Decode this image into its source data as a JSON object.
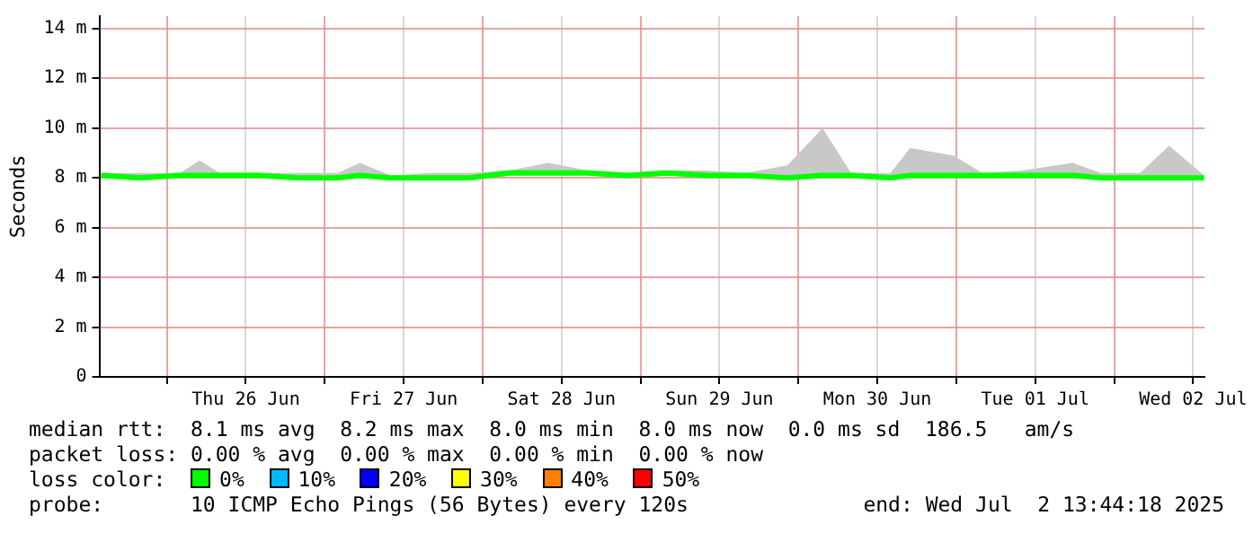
{
  "chart_data": {
    "type": "line",
    "ylabel": "Seconds",
    "xlim": [
      "2025-06-25T13:44:18",
      "2025-07-02T13:44:18"
    ],
    "xticks": [
      {
        "value": "2025-06-26T00:00",
        "label": null
      },
      {
        "value": "2025-06-26T12:00",
        "label": "Thu 26 Jun"
      },
      {
        "value": "2025-06-27T00:00",
        "label": null
      },
      {
        "value": "2025-06-27T12:00",
        "label": "Fri 27 Jun"
      },
      {
        "value": "2025-06-28T00:00",
        "label": null
      },
      {
        "value": "2025-06-28T12:00",
        "label": "Sat 28 Jun"
      },
      {
        "value": "2025-06-29T00:00",
        "label": null
      },
      {
        "value": "2025-06-29T12:00",
        "label": "Sun 29 Jun"
      },
      {
        "value": "2025-06-30T00:00",
        "label": null
      },
      {
        "value": "2025-06-30T12:00",
        "label": "Mon 30 Jun"
      },
      {
        "value": "2025-07-01T00:00",
        "label": null
      },
      {
        "value": "2025-07-01T12:00",
        "label": "Tue 01 Jul"
      },
      {
        "value": "2025-07-02T00:00",
        "label": null
      },
      {
        "value": "2025-07-02T12:00",
        "label": "Wed 02 Jul"
      }
    ],
    "ylim": [
      0,
      14.5
    ],
    "yticks": [
      0,
      {
        "value": 2,
        "label": "2 m"
      },
      {
        "value": 4,
        "label": "4 m"
      },
      {
        "value": 6,
        "label": "6 m"
      },
      {
        "value": 8,
        "label": "8 m"
      },
      {
        "value": 10,
        "label": "10 m"
      },
      {
        "value": 12,
        "label": "12 m"
      },
      {
        "value": 14,
        "label": "14 m"
      }
    ],
    "grid": true,
    "series": [
      {
        "color": "#00ff00",
        "x": [
          "2025-06-25T14:00",
          "2025-06-25T20:00",
          "2025-06-26T02:00",
          "2025-06-26T05:00",
          "2025-06-26T08:00",
          "2025-06-26T14:00",
          "2025-06-26T20:00",
          "2025-06-27T02:00",
          "2025-06-27T05:20",
          "2025-06-27T10:00",
          "2025-06-27T16:00",
          "2025-06-27T22:00",
          "2025-06-28T04:00",
          "2025-06-28T10:00",
          "2025-06-28T16:00",
          "2025-06-28T22:00",
          "2025-06-29T04:00",
          "2025-06-29T10:00",
          "2025-06-29T16:00",
          "2025-06-29T22:20",
          "2025-06-30T03:40",
          "2025-06-30T08:00",
          "2025-06-30T14:00",
          "2025-06-30T17:00",
          "2025-06-30T23:30",
          "2025-07-01T04:00",
          "2025-07-01T10:00",
          "2025-07-01T17:40",
          "2025-07-01T22:00",
          "2025-07-02T04:00",
          "2025-07-02T08:20",
          "2025-07-02T13:40"
        ],
        "values": [
          8.1,
          8.0,
          8.1,
          8.1,
          8.1,
          8.1,
          8.0,
          8.0,
          8.1,
          8.0,
          8.0,
          8.0,
          8.2,
          8.2,
          8.2,
          8.1,
          8.2,
          8.1,
          8.1,
          8.0,
          8.1,
          8.1,
          8.0,
          8.1,
          8.1,
          8.1,
          8.1,
          8.1,
          8.0,
          8.0,
          8.0,
          8.0
        ],
        "lower": [
          8.0,
          7.9,
          8.0,
          8.0,
          8.0,
          8.0,
          7.9,
          7.9,
          8.0,
          7.9,
          7.9,
          7.9,
          8.1,
          8.1,
          8.1,
          8.0,
          8.1,
          8.0,
          8.0,
          7.9,
          8.0,
          8.0,
          7.9,
          8.0,
          8.0,
          8.0,
          8.0,
          8.0,
          7.9,
          7.9,
          7.9,
          7.9
        ],
        "upper": [
          8.2,
          8.2,
          8.2,
          8.7,
          8.2,
          8.2,
          8.2,
          8.2,
          8.6,
          8.1,
          8.2,
          8.2,
          8.3,
          8.6,
          8.3,
          8.2,
          8.3,
          8.3,
          8.2,
          8.5,
          10.0,
          8.2,
          8.2,
          9.2,
          8.9,
          8.2,
          8.3,
          8.6,
          8.2,
          8.2,
          9.3,
          8.1
        ]
      }
    ],
    "annotations": [
      "median rtt:  8.1 ms avg  8.2 ms max  8.0 ms min  8.0 ms now  0.0 ms sd  186.5   am/s",
      "packet loss: 0.00 % avg  0.00 % max  0.00 % min  0.00 % now",
      "loss color:",
      "0%",
      "10%",
      "20%",
      "30%",
      "40%",
      "50%",
      "probe:       10 ICMP Echo Pings (56 Bytes) every 120s",
      "end: Wed Jul  2 13:44:18 2025"
    ]
  }
}
